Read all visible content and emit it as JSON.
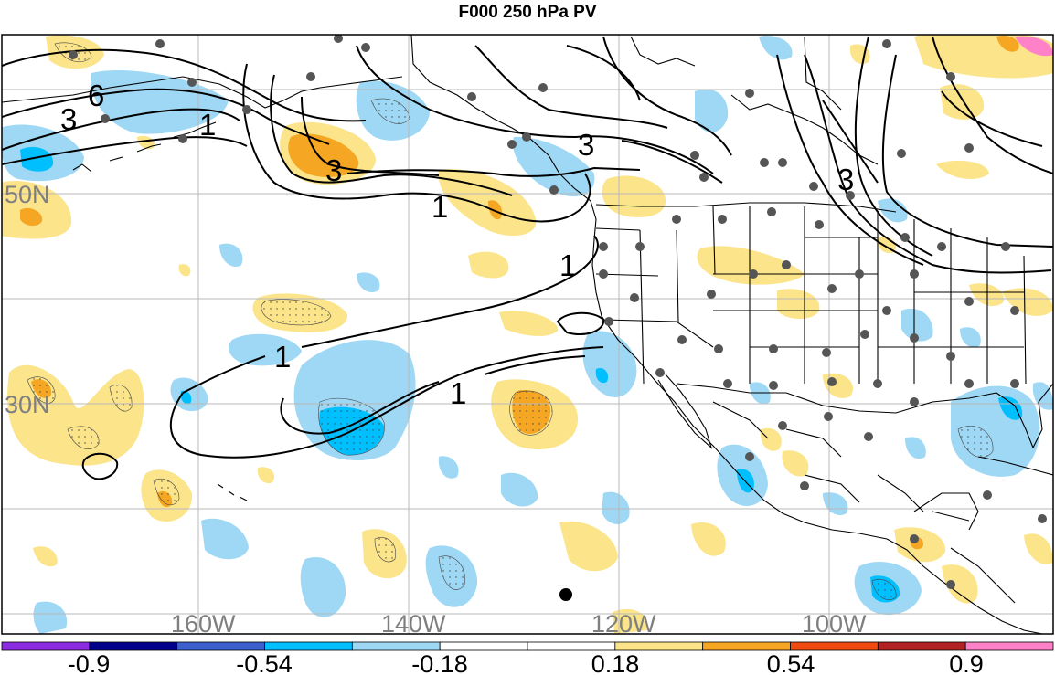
{
  "title": "F000 250 hPa PV",
  "map": {
    "region": "North-East Pacific and North America",
    "longitude_labels": [
      "160W",
      "140W",
      "120W",
      "100W"
    ],
    "latitude_labels": [
      "50N",
      "30N"
    ],
    "contour_labels": [
      "6",
      "3",
      "1",
      "3",
      "1",
      "3",
      "1",
      "1",
      "1",
      "3"
    ],
    "features": [
      "coastlines",
      "country borders",
      "US state borders",
      "lat-lon grid",
      "station dots",
      "PV anomaly shading",
      "PV contours"
    ]
  },
  "colorbar": {
    "tick_labels": [
      "-0.9",
      "-0.54",
      "-0.18",
      "0.18",
      "0.54",
      "0.9"
    ],
    "colors": [
      "#8a2be2",
      "#00008b",
      "#3b5fcc",
      "#00bfff",
      "#9fd8f5",
      "#ffffff",
      "#ffffff",
      "#fbe48a",
      "#f5a623",
      "#f04a12",
      "#b22222",
      "#ff82c8"
    ]
  }
}
